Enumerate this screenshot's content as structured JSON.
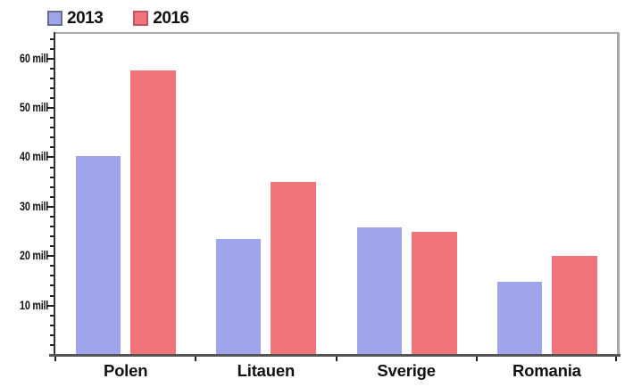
{
  "chart_data": {
    "type": "bar",
    "title": "",
    "xlabel": "",
    "ylabel": "",
    "categories": [
      "Polen",
      "Litauen",
      "Sverige",
      "Romania"
    ],
    "series": [
      {
        "name": "2013",
        "color": "#a0a4ea",
        "border_color": "#6a6e8e",
        "values": [
          40,
          23.3,
          25.6,
          14.6
        ]
      },
      {
        "name": "2016",
        "color": "#f0747a",
        "border_color": "#c25560",
        "values": [
          57.5,
          34.9,
          24.8,
          19.9
        ]
      }
    ],
    "unit": "mill",
    "ylim": [
      0,
      65
    ],
    "y_major_ticks": [
      10,
      20,
      30,
      40,
      50,
      60
    ],
    "y_tick_labels": [
      "10 mill",
      "20 mill",
      "30 mill",
      "40 mill",
      "50 mill",
      "60 mill"
    ],
    "y_minor_tick_step": 2,
    "grid": false,
    "legend_position": "top-left"
  },
  "colors": {
    "background": "#ffffff",
    "axis_dark": "#333333",
    "axis_bottom": "#555555",
    "frame_gray": "#a9a9a9",
    "text": "#111111"
  }
}
